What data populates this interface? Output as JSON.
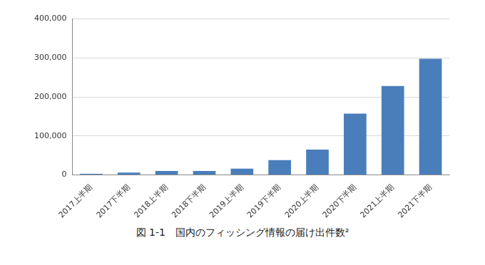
{
  "chart_data": {
    "type": "bar",
    "title": "図 1-1　国内のフィッシング情報の届け出件数²",
    "categories": [
      "2017上半期",
      "2017下半期",
      "2018上半期",
      "2018下半期",
      "2019上半期",
      "2019下半期",
      "2020上半期",
      "2020下半期",
      "2021上半期",
      "2021下半期"
    ],
    "values": [
      3000,
      6000,
      10000,
      10000,
      16000,
      38000,
      65000,
      157000,
      228000,
      298000
    ],
    "color": "#4a7ebb",
    "ylim": [
      0,
      400000
    ],
    "yticks": [
      0,
      {
        "value": 100000,
        "label": "100,000"
      },
      {
        "value": 200000,
        "label": "200,000"
      },
      {
        "value": 300000,
        "label": "300,000"
      },
      {
        "value": 400000,
        "label": "400,000"
      }
    ],
    "grid": true
  }
}
